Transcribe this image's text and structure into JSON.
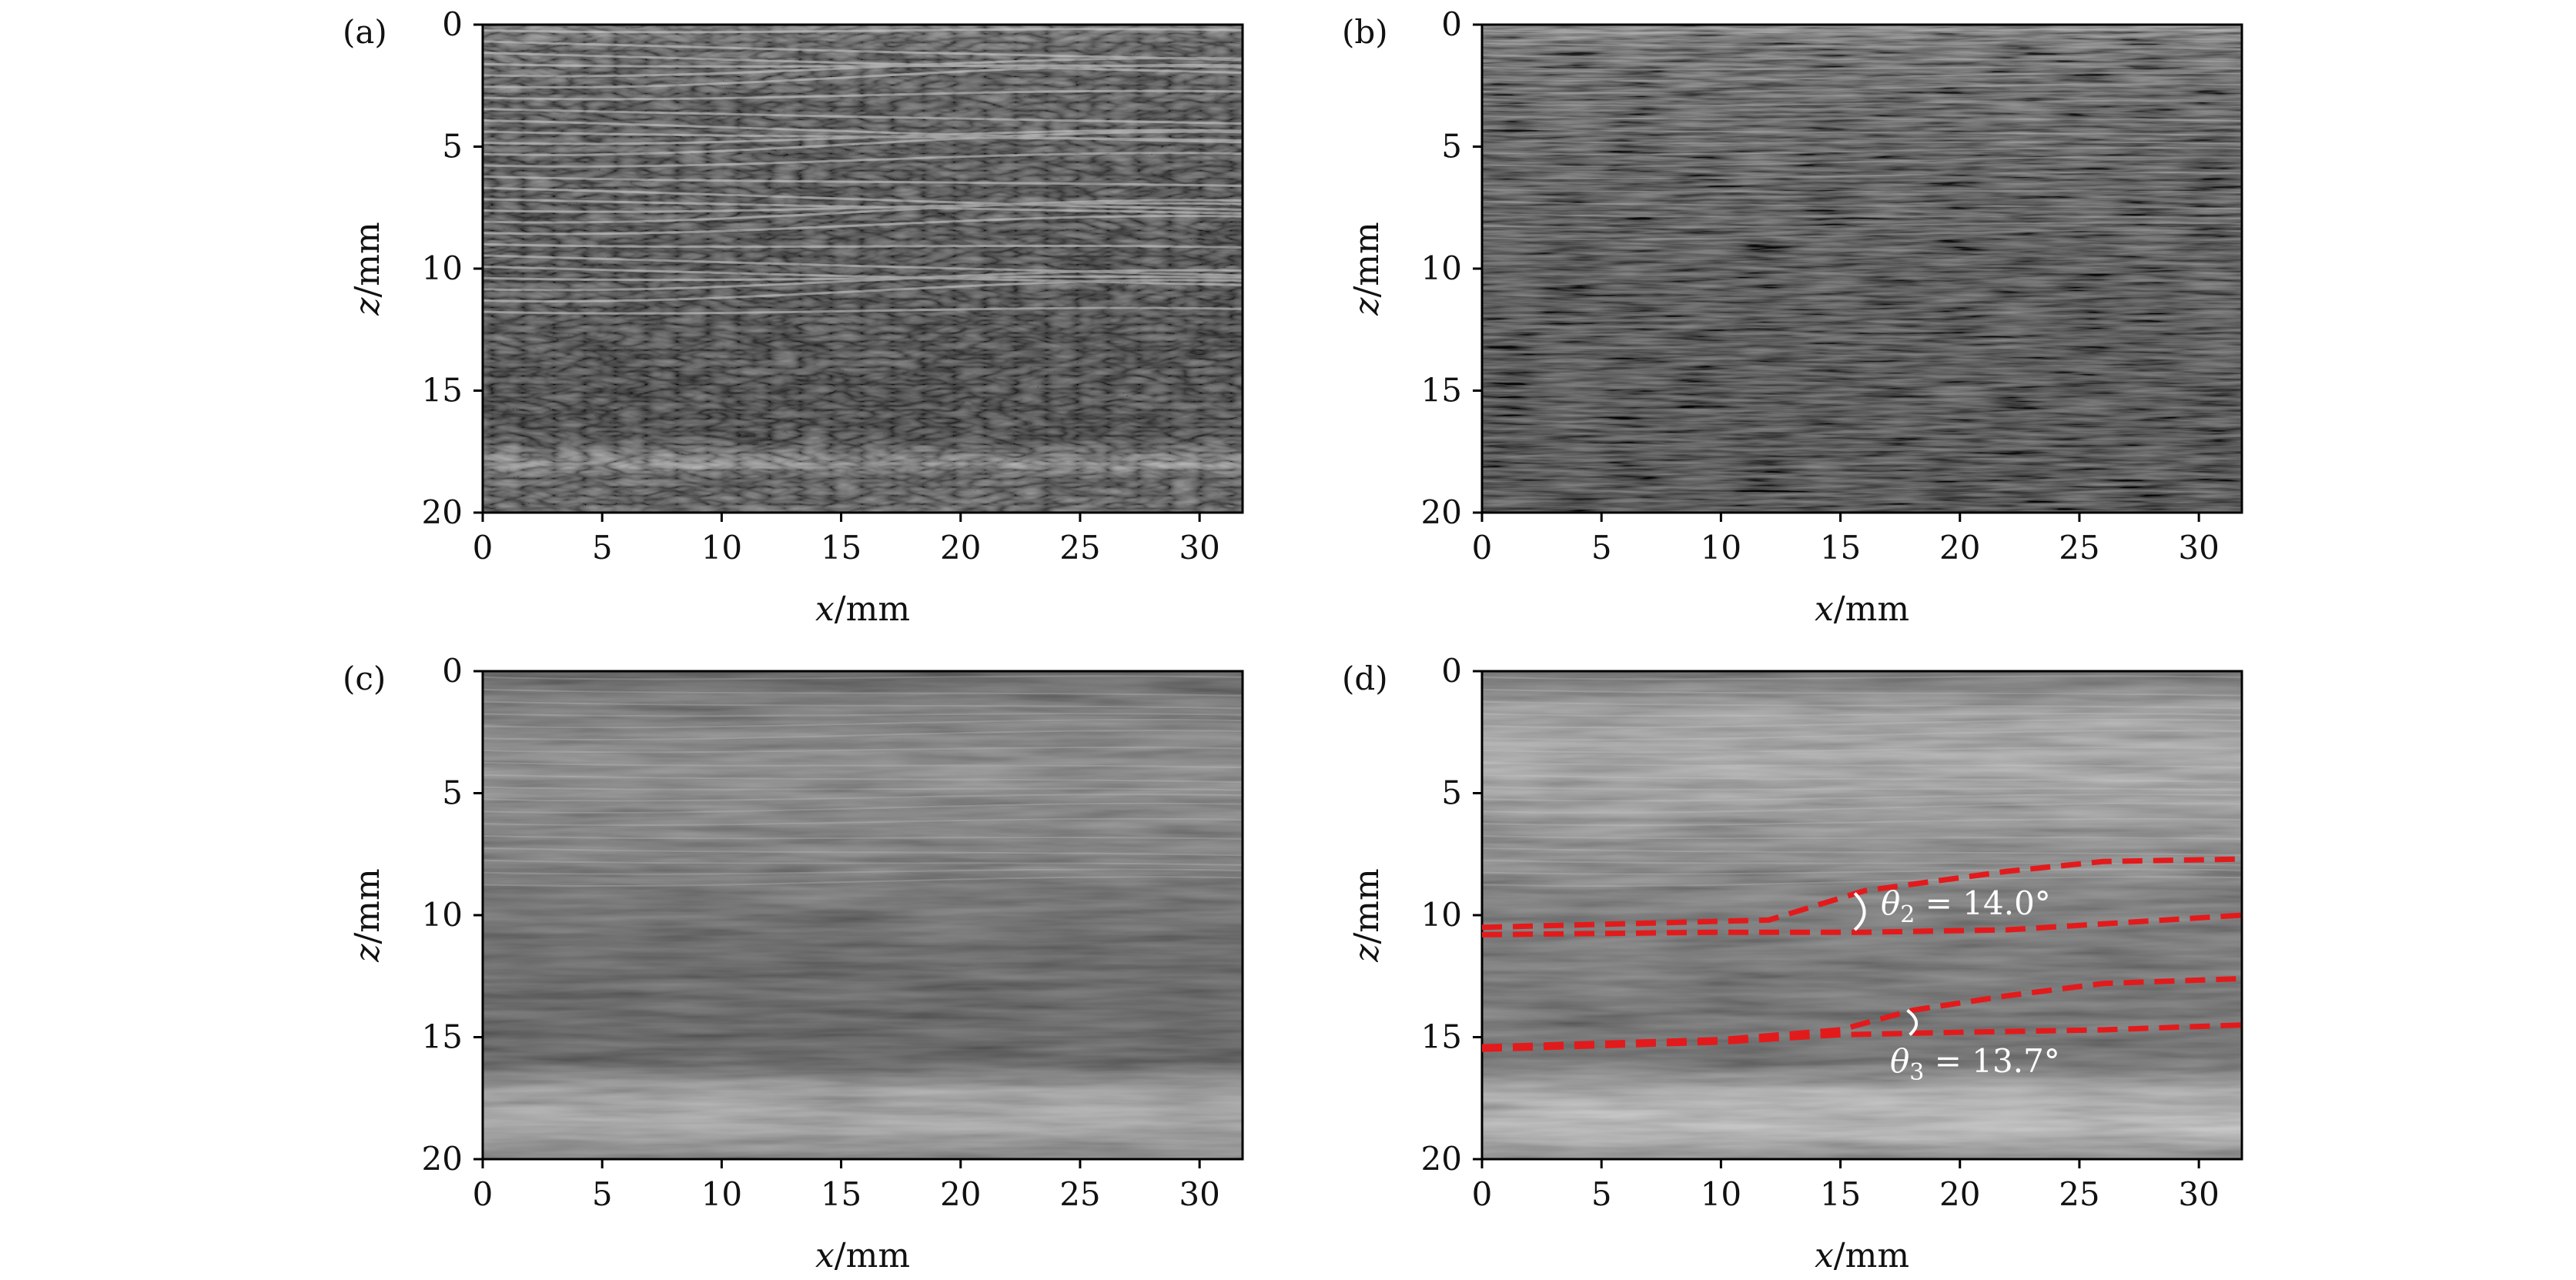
{
  "figure": {
    "type": "ultrasound-image-grid",
    "rows": 2,
    "cols": 2
  },
  "chart_data": [
    {
      "type": "heatmap",
      "panel_label": "(a)",
      "xlabel_var": "x",
      "xlabel_unit": "/mm",
      "ylabel_var": "z",
      "ylabel_unit": "/mm",
      "xlim": [
        0,
        31.8
      ],
      "ylim": [
        0,
        20
      ],
      "x_ticks": [
        0,
        5,
        10,
        15,
        20,
        25,
        30
      ],
      "y_ticks": [
        0,
        5,
        10,
        15,
        20
      ],
      "colormap": "gray",
      "annotations": [],
      "dashed_lines": []
    },
    {
      "type": "heatmap",
      "panel_label": "(b)",
      "xlabel_var": "x",
      "xlabel_unit": "/mm",
      "ylabel_var": "z",
      "ylabel_unit": "/mm",
      "xlim": [
        0,
        31.8
      ],
      "ylim": [
        0,
        20
      ],
      "x_ticks": [
        0,
        5,
        10,
        15,
        20,
        25,
        30
      ],
      "y_ticks": [
        0,
        5,
        10,
        15,
        20
      ],
      "colormap": "gray",
      "annotations": [],
      "dashed_lines": []
    },
    {
      "type": "heatmap",
      "panel_label": "(c)",
      "xlabel_var": "x",
      "xlabel_unit": "/mm",
      "ylabel_var": "z",
      "ylabel_unit": "/mm",
      "xlim": [
        0,
        31.8
      ],
      "ylim": [
        0,
        20
      ],
      "x_ticks": [
        0,
        5,
        10,
        15,
        20,
        25,
        30
      ],
      "y_ticks": [
        0,
        5,
        10,
        15,
        20
      ],
      "colormap": "gray",
      "annotations": [],
      "dashed_lines": []
    },
    {
      "type": "heatmap",
      "panel_label": "(d)",
      "xlabel_var": "x",
      "xlabel_unit": "/mm",
      "ylabel_var": "z",
      "ylabel_unit": "/mm",
      "xlim": [
        0,
        31.8
      ],
      "ylim": [
        0,
        20
      ],
      "x_ticks": [
        0,
        5,
        10,
        15,
        20,
        25,
        30
      ],
      "y_ticks": [
        0,
        5,
        10,
        15,
        20
      ],
      "colormap": "gray",
      "annotations": [
        {
          "symbol": "θ",
          "subscript": "2",
          "text": " = 14.0°"
        },
        {
          "symbol": "θ",
          "subscript": "3",
          "text": " = 13.7°"
        }
      ],
      "dashed_lines": [
        {
          "name": "upper-interface-top",
          "color": "#e31a1c",
          "points": [
            [
              0,
              10.5
            ],
            [
              12,
              10.2
            ],
            [
              16,
              9.0
            ],
            [
              22,
              8.2
            ],
            [
              26,
              7.8
            ],
            [
              31.8,
              7.7
            ]
          ]
        },
        {
          "name": "upper-interface-bottom",
          "color": "#e31a1c",
          "points": [
            [
              0,
              10.8
            ],
            [
              10,
              10.7
            ],
            [
              16,
              10.7
            ],
            [
              22,
              10.6
            ],
            [
              31.8,
              10.0
            ]
          ]
        },
        {
          "name": "lower-interface-top",
          "color": "#e31a1c",
          "points": [
            [
              0,
              15.4
            ],
            [
              10,
              15.1
            ],
            [
              15,
              14.7
            ],
            [
              18,
              13.9
            ],
            [
              22,
              13.3
            ],
            [
              26,
              12.8
            ],
            [
              31.8,
              12.6
            ]
          ]
        },
        {
          "name": "lower-interface-bottom",
          "color": "#e31a1c",
          "points": [
            [
              0,
              15.5
            ],
            [
              10,
              15.2
            ],
            [
              15,
              14.9
            ],
            [
              20,
              14.8
            ],
            [
              26,
              14.7
            ],
            [
              31.8,
              14.5
            ]
          ]
        }
      ]
    }
  ]
}
